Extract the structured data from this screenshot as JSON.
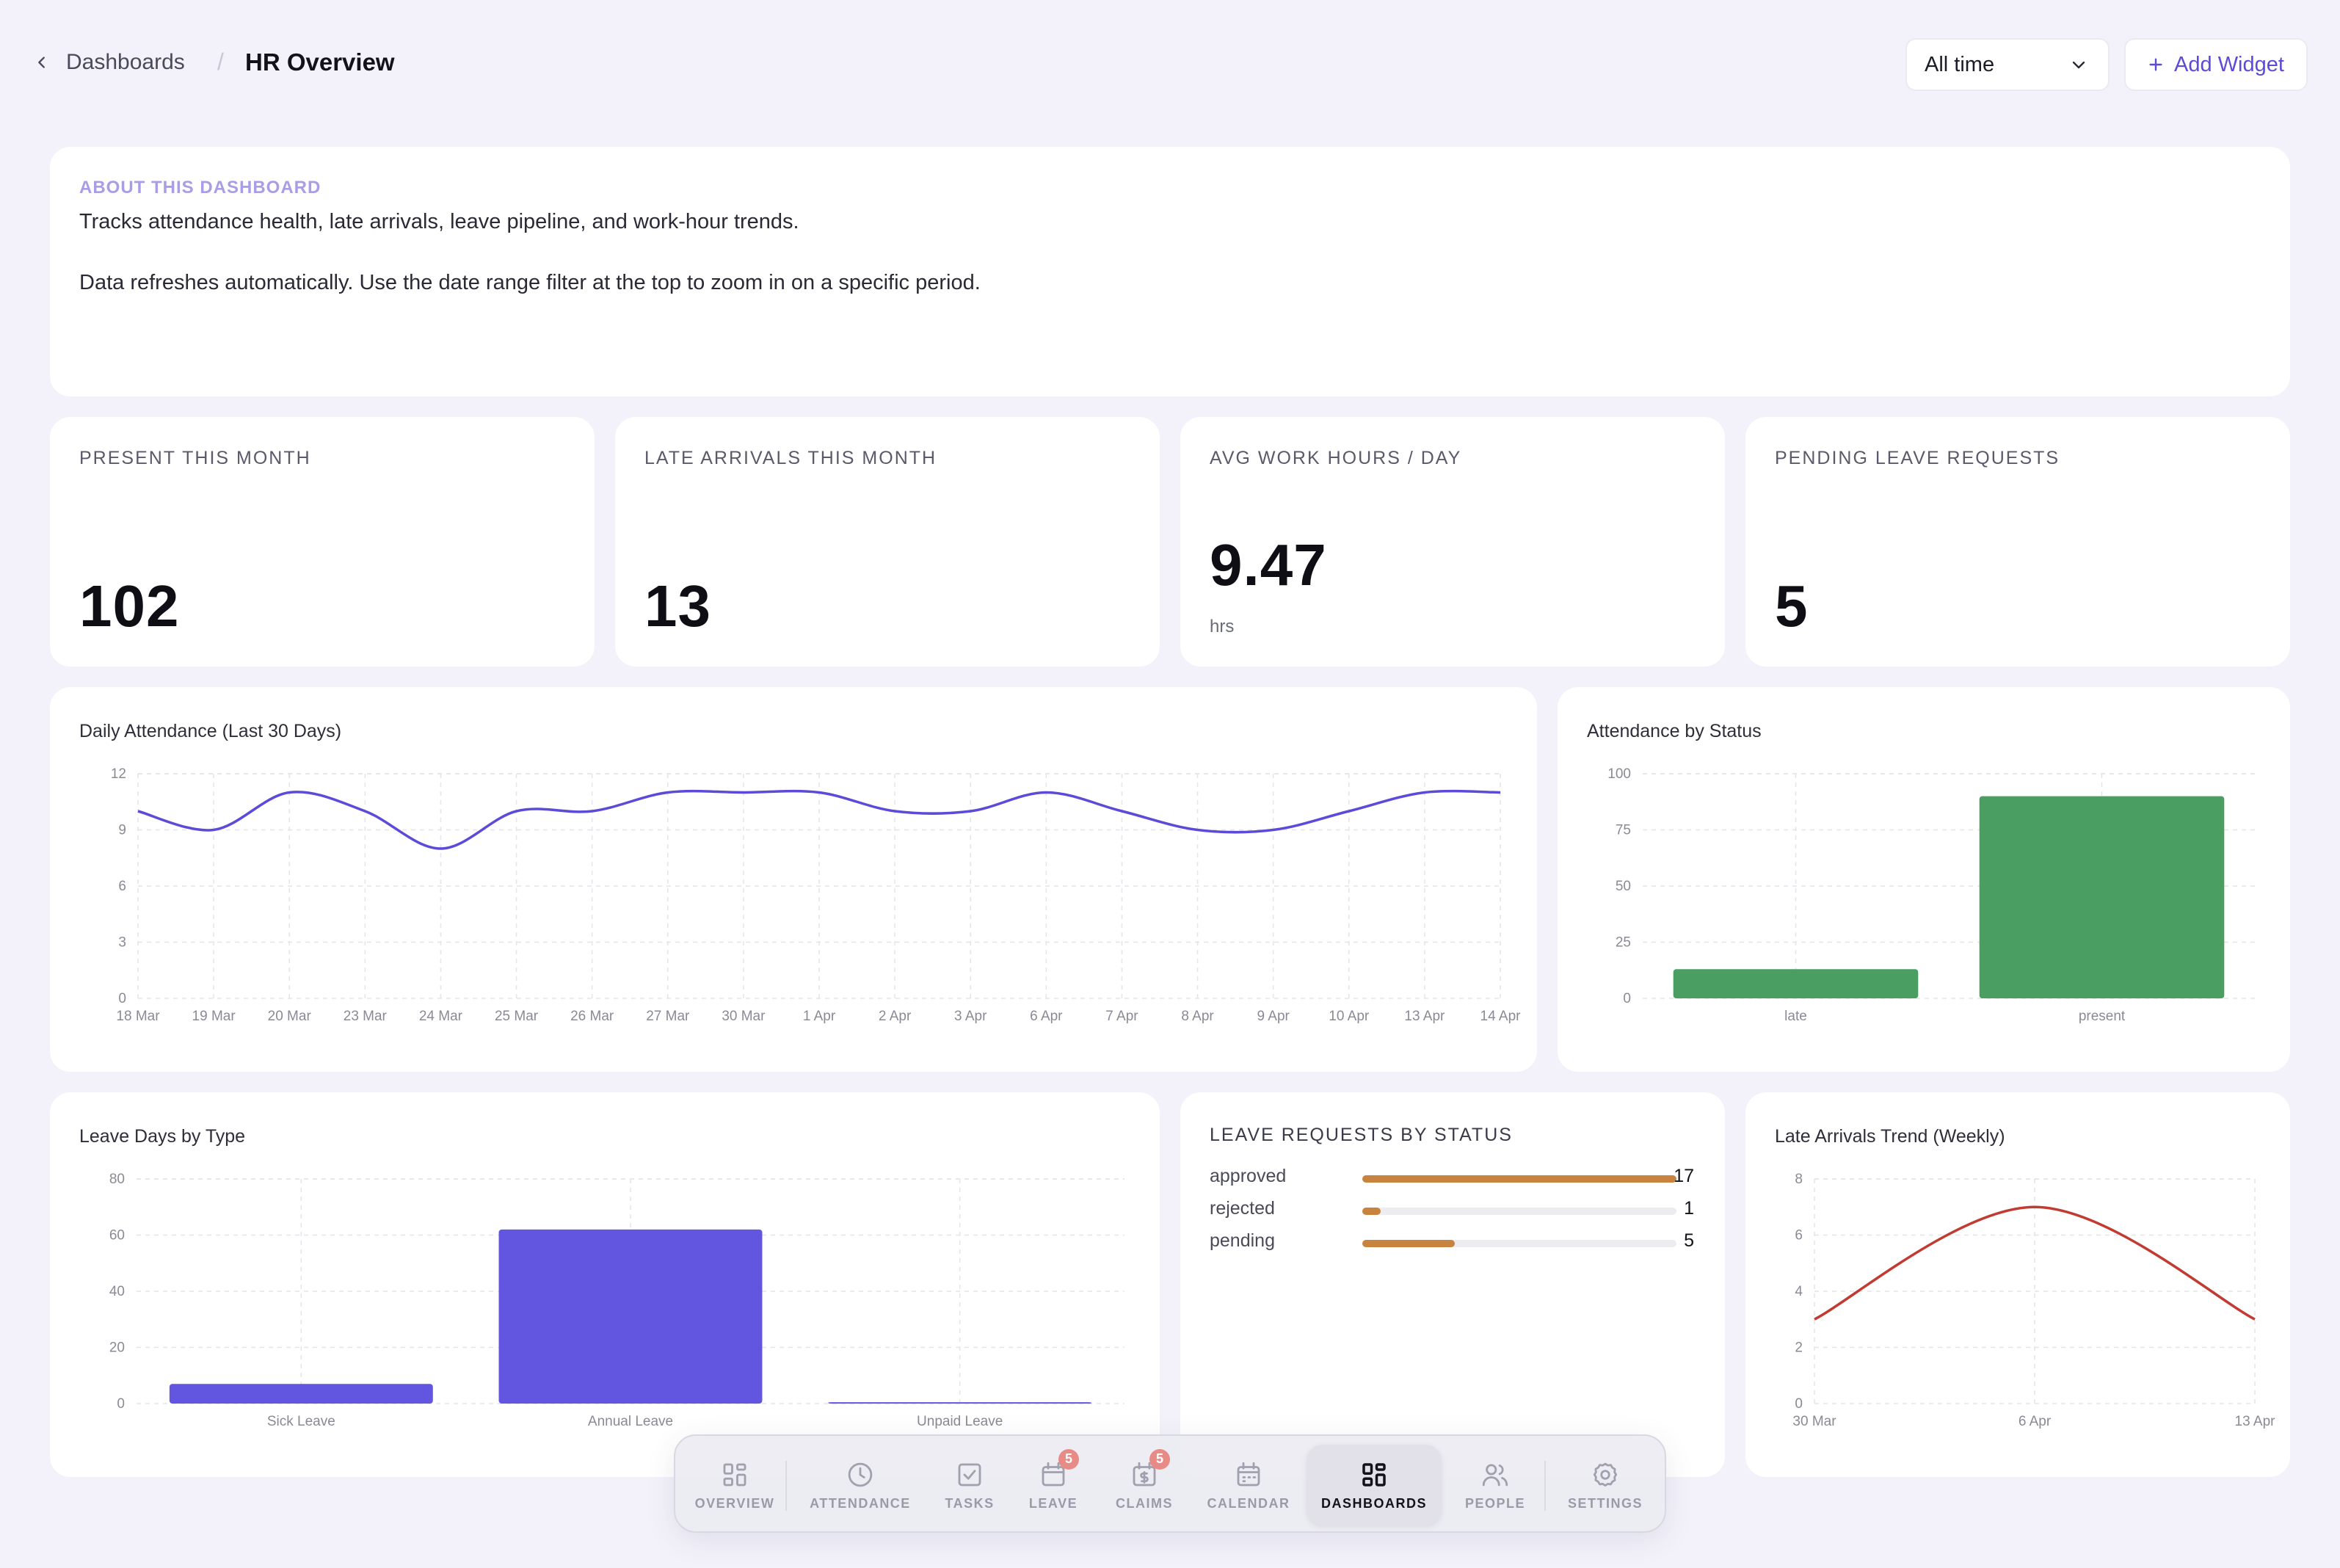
{
  "header": {
    "back_label": "Dashboards",
    "separator": "/",
    "title": "HR Overview",
    "range_value": "All time",
    "add_widget_label": "Add Widget"
  },
  "about": {
    "heading": "ABOUT THIS DASHBOARD",
    "line1": "Tracks attendance health, late arrivals, leave pipeline, and work-hour trends.",
    "line2": "Data refreshes automatically. Use the date range filter at the top to zoom in on a specific period."
  },
  "stats": [
    {
      "label": "PRESENT THIS MONTH",
      "value": "102"
    },
    {
      "label": "LATE ARRIVALS THIS MONTH",
      "value": "13"
    },
    {
      "label": "AVG WORK HOURS / DAY",
      "value": "9.47",
      "unit": "hrs"
    },
    {
      "label": "PENDING LEAVE REQUESTS",
      "value": "5"
    }
  ],
  "chart_data": [
    {
      "type": "line",
      "title": "Daily Attendance (Last 30 Days)",
      "x": [
        "18 Mar",
        "19 Mar",
        "20 Mar",
        "23 Mar",
        "24 Mar",
        "25 Mar",
        "26 Mar",
        "27 Mar",
        "30 Mar",
        "1 Apr",
        "2 Apr",
        "3 Apr",
        "6 Apr",
        "7 Apr",
        "8 Apr",
        "9 Apr",
        "10 Apr",
        "13 Apr",
        "14 Apr"
      ],
      "values": [
        10,
        9,
        11,
        10,
        8,
        10,
        10,
        11,
        11,
        11,
        10,
        10,
        11,
        10,
        9,
        9,
        10,
        11,
        11
      ],
      "yticks": [
        0,
        3,
        6,
        9,
        12
      ],
      "ylim": [
        0,
        12
      ],
      "color": "#5b4bd8",
      "grid": true
    },
    {
      "type": "bar",
      "title": "Attendance by Status",
      "categories": [
        "late",
        "present"
      ],
      "values": [
        13,
        90
      ],
      "yticks": [
        0,
        25,
        50,
        75,
        100
      ],
      "ylim": [
        0,
        100
      ],
      "color": "#4a9e62",
      "grid": true
    },
    {
      "type": "bar",
      "title": "Leave Days by Type",
      "categories": [
        "Sick Leave",
        "Annual Leave",
        "Unpaid Leave"
      ],
      "values": [
        7,
        62,
        0.5
      ],
      "yticks": [
        0,
        20,
        40,
        60,
        80
      ],
      "ylim": [
        0,
        80
      ],
      "color": "#6256e0",
      "grid": true
    },
    {
      "type": "line",
      "title": "Late Arrivals Trend (Weekly)",
      "x": [
        "30 Mar",
        "6 Apr",
        "13 Apr"
      ],
      "values": [
        3,
        7,
        3
      ],
      "yticks": [
        0,
        2,
        4,
        6,
        8
      ],
      "ylim": [
        0,
        8
      ],
      "color": "#c23b32",
      "grid": true
    }
  ],
  "leave_status": {
    "title": "LEAVE REQUESTS BY STATUS",
    "max": 17,
    "rows": [
      {
        "label": "approved",
        "count": "17",
        "value": 17
      },
      {
        "label": "rejected",
        "count": "1",
        "value": 1
      },
      {
        "label": "pending",
        "count": "5",
        "value": 5
      }
    ],
    "bar_color": "#c8843e"
  },
  "nav": [
    {
      "label": "OVERVIEW",
      "icon": "grid-icon"
    },
    {
      "label": "ATTENDANCE",
      "icon": "clock-icon"
    },
    {
      "label": "TASKS",
      "icon": "checkbox-icon"
    },
    {
      "label": "LEAVE",
      "icon": "calendar-icon",
      "badge": "5"
    },
    {
      "label": "CLAIMS",
      "icon": "receipt-icon",
      "badge": "5"
    },
    {
      "label": "CALENDAR",
      "icon": "calendar-icon"
    },
    {
      "label": "DASHBOARDS",
      "icon": "dashboard-icon",
      "active": true
    },
    {
      "label": "PEOPLE",
      "icon": "people-icon"
    },
    {
      "label": "SETTINGS",
      "icon": "gear-icon"
    }
  ]
}
